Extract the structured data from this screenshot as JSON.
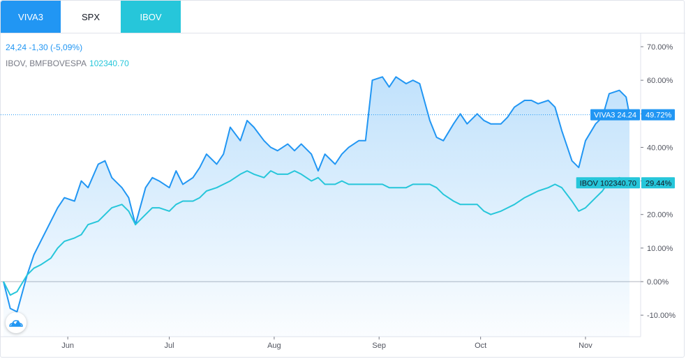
{
  "tabs": [
    {
      "label": "VIVA3",
      "color": "#2196f3"
    },
    {
      "label": "SPX",
      "color": "#ffffff"
    },
    {
      "label": "IBOV",
      "color": "#26c6da"
    }
  ],
  "legend": {
    "main_values": "24,24 -1,30 (-5,09%)",
    "compare_label": "IBOV, BMFBOVESPA",
    "compare_value": "102340.70"
  },
  "markers": {
    "viva": {
      "label": "VIVA3 24.24",
      "pct": "49.72%",
      "color": "#2196f3"
    },
    "ibov": {
      "label": "IBOV 102340.70",
      "pct": "29.44%",
      "color": "#26c6da"
    }
  },
  "chart_data": {
    "type": "line",
    "x_tick_labels": [
      "Jun",
      "Jul",
      "Aug",
      "Sep",
      "Oct",
      "Nov"
    ],
    "y_tick_labels": [
      "70.00%",
      "60.00%",
      "50.00%",
      "40.00%",
      "30.00%",
      "20.00%",
      "10.00%",
      "0.00%",
      "-10.00%"
    ],
    "ylim": [
      -13,
      72
    ],
    "y_unit": "%",
    "grid": false,
    "series": [
      {
        "name": "VIVA3",
        "color": "#2196f3",
        "area_fill": true,
        "points": [
          [
            "May 13",
            0
          ],
          [
            "May 15",
            -8
          ],
          [
            "May 17",
            -9
          ],
          [
            "May 20",
            2
          ],
          [
            "May 22",
            8
          ],
          [
            "May 24",
            12
          ],
          [
            "May 27",
            18
          ],
          [
            "May 29",
            22
          ],
          [
            "May 31",
            25
          ],
          [
            "Jun 3",
            24
          ],
          [
            "Jun 5",
            30
          ],
          [
            "Jun 7",
            28
          ],
          [
            "Jun 10",
            35
          ],
          [
            "Jun 12",
            36
          ],
          [
            "Jun 14",
            31
          ],
          [
            "Jun 17",
            28
          ],
          [
            "Jun 19",
            25
          ],
          [
            "Jun 21",
            17
          ],
          [
            "Jun 24",
            28
          ],
          [
            "Jun 26",
            31
          ],
          [
            "Jun 28",
            30
          ],
          [
            "Jul 1",
            28
          ],
          [
            "Jul 3",
            33
          ],
          [
            "Jul 5",
            29
          ],
          [
            "Jul 8",
            31
          ],
          [
            "Jul 10",
            34
          ],
          [
            "Jul 12",
            38
          ],
          [
            "Jul 15",
            35
          ],
          [
            "Jul 17",
            38
          ],
          [
            "Jul 19",
            46
          ],
          [
            "Jul 22",
            42
          ],
          [
            "Jul 24",
            48
          ],
          [
            "Jul 26",
            46
          ],
          [
            "Jul 29",
            42
          ],
          [
            "Jul 31",
            40
          ],
          [
            "Aug 2",
            39
          ],
          [
            "Aug 5",
            41
          ],
          [
            "Aug 7",
            39
          ],
          [
            "Aug 9",
            41
          ],
          [
            "Aug 12",
            38
          ],
          [
            "Aug 14",
            33
          ],
          [
            "Aug 16",
            38
          ],
          [
            "Aug 19",
            35
          ],
          [
            "Aug 21",
            38
          ],
          [
            "Aug 23",
            40
          ],
          [
            "Aug 26",
            42
          ],
          [
            "Aug 28",
            42
          ],
          [
            "Aug 30",
            60
          ],
          [
            "Sep 2",
            61
          ],
          [
            "Sep 4",
            58
          ],
          [
            "Sep 6",
            61
          ],
          [
            "Sep 9",
            59
          ],
          [
            "Sep 11",
            60
          ],
          [
            "Sep 13",
            59
          ],
          [
            "Sep 16",
            48
          ],
          [
            "Sep 18",
            43
          ],
          [
            "Sep 20",
            42
          ],
          [
            "Sep 23",
            47
          ],
          [
            "Sep 25",
            50
          ],
          [
            "Sep 27",
            47
          ],
          [
            "Sep 30",
            50
          ],
          [
            "Oct 2",
            48
          ],
          [
            "Oct 4",
            47
          ],
          [
            "Oct 7",
            47
          ],
          [
            "Oct 9",
            49
          ],
          [
            "Oct 11",
            52
          ],
          [
            "Oct 14",
            54
          ],
          [
            "Oct 16",
            54
          ],
          [
            "Oct 18",
            53
          ],
          [
            "Oct 21",
            54
          ],
          [
            "Oct 23",
            52
          ],
          [
            "Oct 25",
            45
          ],
          [
            "Oct 28",
            36
          ],
          [
            "Oct 30",
            34
          ],
          [
            "Nov 1",
            42
          ],
          [
            "Nov 4",
            47
          ],
          [
            "Nov 6",
            49
          ],
          [
            "Nov 8",
            56
          ],
          [
            "Nov 11",
            57
          ],
          [
            "Nov 13",
            55
          ],
          [
            "Nov 14",
            49.72
          ]
        ]
      },
      {
        "name": "IBOV",
        "color": "#26c6da",
        "area_fill": false,
        "points": [
          [
            "May 13",
            0
          ],
          [
            "May 15",
            -4
          ],
          [
            "May 17",
            -3
          ],
          [
            "May 20",
            2
          ],
          [
            "May 22",
            4
          ],
          [
            "May 24",
            5
          ],
          [
            "May 27",
            7
          ],
          [
            "May 29",
            10
          ],
          [
            "May 31",
            12
          ],
          [
            "Jun 3",
            13
          ],
          [
            "Jun 5",
            14
          ],
          [
            "Jun 7",
            17
          ],
          [
            "Jun 10",
            18
          ],
          [
            "Jun 12",
            20
          ],
          [
            "Jun 14",
            22
          ],
          [
            "Jun 17",
            23
          ],
          [
            "Jun 19",
            21
          ],
          [
            "Jun 21",
            17
          ],
          [
            "Jun 24",
            20
          ],
          [
            "Jun 26",
            22
          ],
          [
            "Jun 28",
            22
          ],
          [
            "Jul 1",
            21
          ],
          [
            "Jul 3",
            23
          ],
          [
            "Jul 5",
            24
          ],
          [
            "Jul 8",
            24
          ],
          [
            "Jul 10",
            25
          ],
          [
            "Jul 12",
            27
          ],
          [
            "Jul 15",
            28
          ],
          [
            "Jul 17",
            29
          ],
          [
            "Jul 19",
            30
          ],
          [
            "Jul 22",
            32
          ],
          [
            "Jul 24",
            33
          ],
          [
            "Jul 26",
            32
          ],
          [
            "Jul 29",
            31
          ],
          [
            "Jul 31",
            33
          ],
          [
            "Aug 2",
            32
          ],
          [
            "Aug 5",
            32
          ],
          [
            "Aug 7",
            33
          ],
          [
            "Aug 9",
            32
          ],
          [
            "Aug 12",
            30
          ],
          [
            "Aug 14",
            31
          ],
          [
            "Aug 16",
            29
          ],
          [
            "Aug 19",
            29
          ],
          [
            "Aug 21",
            30
          ],
          [
            "Aug 23",
            29
          ],
          [
            "Aug 26",
            29
          ],
          [
            "Aug 28",
            29
          ],
          [
            "Aug 30",
            29
          ],
          [
            "Sep 2",
            29
          ],
          [
            "Sep 4",
            28
          ],
          [
            "Sep 6",
            28
          ],
          [
            "Sep 9",
            28
          ],
          [
            "Sep 11",
            29
          ],
          [
            "Sep 13",
            29
          ],
          [
            "Sep 16",
            29
          ],
          [
            "Sep 18",
            28
          ],
          [
            "Sep 20",
            26
          ],
          [
            "Sep 23",
            24
          ],
          [
            "Sep 25",
            23
          ],
          [
            "Sep 27",
            23
          ],
          [
            "Sep 30",
            23
          ],
          [
            "Oct 2",
            21
          ],
          [
            "Oct 4",
            20
          ],
          [
            "Oct 7",
            21
          ],
          [
            "Oct 9",
            22
          ],
          [
            "Oct 11",
            23
          ],
          [
            "Oct 14",
            25
          ],
          [
            "Oct 16",
            26
          ],
          [
            "Oct 18",
            27
          ],
          [
            "Oct 21",
            28
          ],
          [
            "Oct 23",
            29
          ],
          [
            "Oct 25",
            28
          ],
          [
            "Oct 28",
            24
          ],
          [
            "Oct 30",
            21
          ],
          [
            "Nov 1",
            22
          ],
          [
            "Nov 4",
            25
          ],
          [
            "Nov 6",
            27
          ],
          [
            "Nov 8",
            30
          ],
          [
            "Nov 11",
            31
          ],
          [
            "Nov 13",
            30
          ],
          [
            "Nov 14",
            29.44
          ]
        ]
      }
    ],
    "reference_lines": [
      {
        "value": 0,
        "style": "solid",
        "color": "#b2b5be"
      },
      {
        "value": 49.72,
        "style": "dotted",
        "color": "#2196f3"
      }
    ]
  }
}
